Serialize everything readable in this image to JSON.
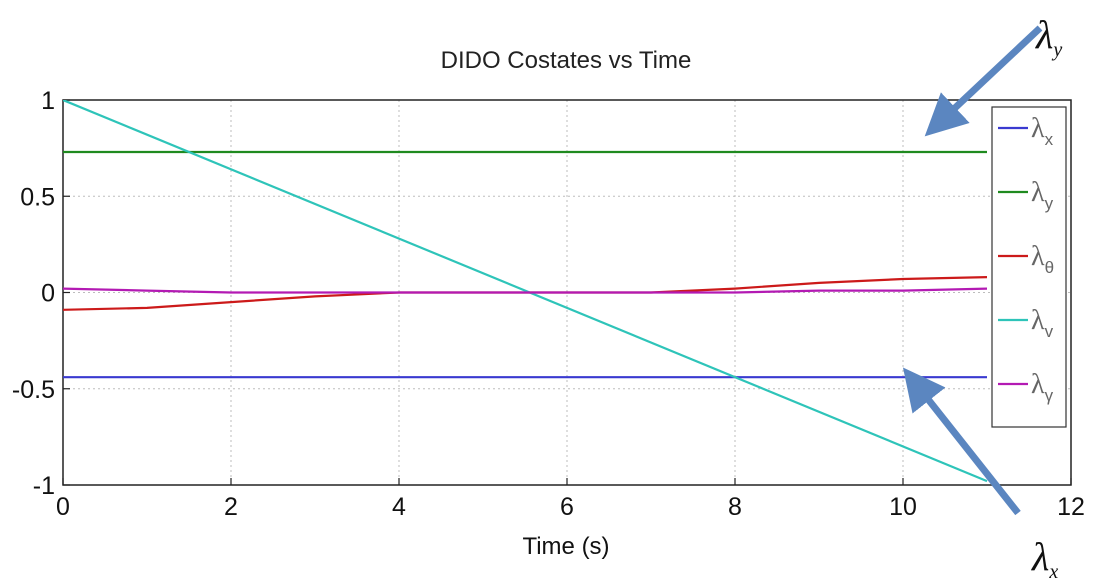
{
  "chart_data": {
    "type": "line",
    "title": "DIDO Costates vs Time",
    "xlabel": "Time (s)",
    "ylabel": "",
    "xlim": [
      0,
      12
    ],
    "ylim": [
      -1,
      1
    ],
    "xticks": [
      "0",
      "2",
      "4",
      "6",
      "8",
      "10",
      "12"
    ],
    "yticks": [
      "1",
      "0.5",
      "0",
      "-0.5",
      "-1"
    ],
    "grid": true,
    "legend_position": "right",
    "series": [
      {
        "name": "λ",
        "subscript": "x",
        "color": "#3a3ad0",
        "x": [
          0,
          11
        ],
        "y": [
          -0.44,
          -0.44
        ]
      },
      {
        "name": "λ",
        "subscript": "y",
        "color": "#1f8a1f",
        "x": [
          0,
          11
        ],
        "y": [
          0.73,
          0.73
        ]
      },
      {
        "name": "λ",
        "subscript": "θ",
        "color": "#cc1a1a",
        "x": [
          0,
          1,
          2,
          3,
          4,
          5,
          5.5,
          6,
          7,
          8,
          9,
          10,
          11
        ],
        "y": [
          -0.09,
          -0.08,
          -0.05,
          -0.02,
          0,
          0,
          0,
          0,
          0,
          0.02,
          0.05,
          0.07,
          0.08
        ]
      },
      {
        "name": "λ",
        "subscript": "v",
        "color": "#2ec4b9",
        "x": [
          0,
          11
        ],
        "y": [
          1,
          -0.98
        ]
      },
      {
        "name": "λ",
        "subscript": "γ",
        "color": "#b31ab3",
        "x": [
          0,
          1,
          2,
          3,
          4,
          5,
          6,
          7,
          8,
          9,
          10,
          11
        ],
        "y": [
          0.02,
          0.01,
          0,
          0,
          0,
          0,
          0,
          0,
          0,
          0.01,
          0.01,
          0.02
        ]
      }
    ],
    "annotations": [
      {
        "name": "λ",
        "subscript": "y"
      },
      {
        "name": "λ",
        "subscript": "x"
      }
    ]
  }
}
